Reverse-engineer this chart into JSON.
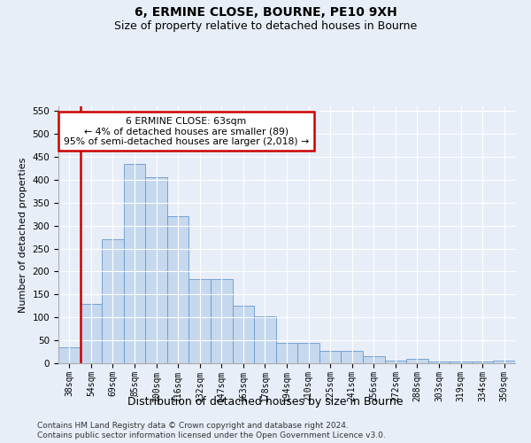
{
  "title": "6, ERMINE CLOSE, BOURNE, PE10 9XH",
  "subtitle": "Size of property relative to detached houses in Bourne",
  "xlabel": "Distribution of detached houses by size in Bourne",
  "ylabel": "Number of detached properties",
  "bar_color": "#c5d8ee",
  "bar_edge_color": "#6699cc",
  "categories": [
    "38sqm",
    "54sqm",
    "69sqm",
    "85sqm",
    "100sqm",
    "116sqm",
    "132sqm",
    "147sqm",
    "163sqm",
    "178sqm",
    "194sqm",
    "210sqm",
    "225sqm",
    "241sqm",
    "256sqm",
    "272sqm",
    "288sqm",
    "303sqm",
    "319sqm",
    "334sqm",
    "350sqm"
  ],
  "values": [
    35,
    130,
    270,
    435,
    405,
    320,
    183,
    183,
    125,
    103,
    45,
    45,
    28,
    28,
    16,
    6,
    10,
    3,
    3,
    3,
    6
  ],
  "ylim": [
    0,
    560
  ],
  "yticks": [
    0,
    50,
    100,
    150,
    200,
    250,
    300,
    350,
    400,
    450,
    500,
    550
  ],
  "vline_index": 1,
  "vline_color": "#cc0000",
  "annotation_text": "6 ERMINE CLOSE: 63sqm\n← 4% of detached houses are smaller (89)\n95% of semi-detached houses are larger (2,018) →",
  "annotation_box_color": "#ffffff",
  "annotation_box_edge": "#cc0000",
  "footer_line1": "Contains HM Land Registry data © Crown copyright and database right 2024.",
  "footer_line2": "Contains public sector information licensed under the Open Government Licence v3.0.",
  "background_color": "#e8eef8",
  "plot_bg_color": "#e8eef8",
  "title_fontsize": 10,
  "subtitle_fontsize": 9,
  "tick_fontsize": 7,
  "ylabel_fontsize": 8,
  "xlabel_fontsize": 9,
  "footer_fontsize": 6.5
}
